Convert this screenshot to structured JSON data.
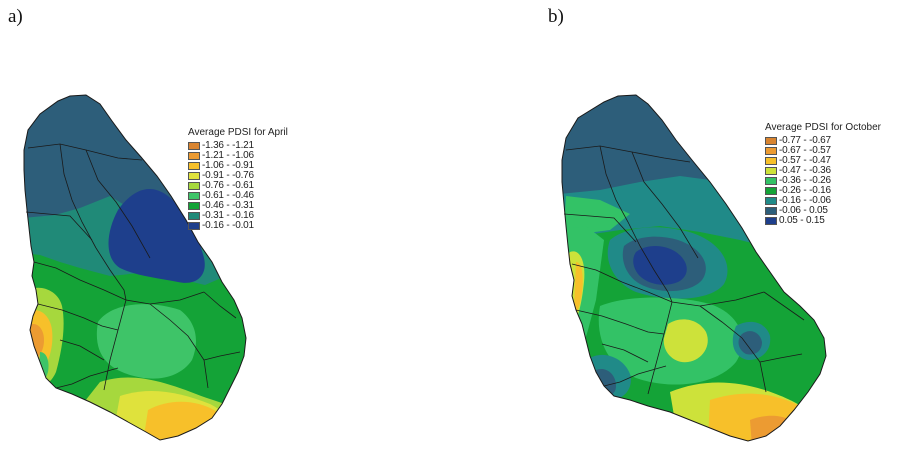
{
  "panels": [
    {
      "label": "a)",
      "legend_title": "Average PDSI for April",
      "classes": [
        {
          "range": "-1.36 - -1.21",
          "color": "#d88430"
        },
        {
          "range": "-1.21 - -1.06",
          "color": "#ec9b32"
        },
        {
          "range": "-1.06 - -0.91",
          "color": "#f7c02a"
        },
        {
          "range": "-0.91 - -0.76",
          "color": "#dfe23c"
        },
        {
          "range": "-0.76 - -0.61",
          "color": "#a6d83d"
        },
        {
          "range": "-0.61 - -0.46",
          "color": "#3ec468"
        },
        {
          "range": "-0.46 - -0.31",
          "color": "#14a337"
        },
        {
          "range": "-0.31 - -0.16",
          "color": "#208a78"
        },
        {
          "range": "-0.16 - -0.01",
          "color": "#1e3f8c"
        }
      ]
    },
    {
      "label": "b)",
      "legend_title": "Average PDSI for October",
      "classes": [
        {
          "range": "-0.77 - -0.67",
          "color": "#d88430"
        },
        {
          "range": "-0.67 - -0.57",
          "color": "#ec9b32"
        },
        {
          "range": "-0.57 - -0.47",
          "color": "#f7c02a"
        },
        {
          "range": "-0.47 - -0.36",
          "color": "#cde23a"
        },
        {
          "range": "-0.36 - -0.26",
          "color": "#33c266"
        },
        {
          "range": "-0.26 - -0.16",
          "color": "#14a337"
        },
        {
          "range": "-0.16 - -0.06",
          "color": "#208a88"
        },
        {
          "range": "-0.06 - 0.05",
          "color": "#2d5e7a"
        },
        {
          "range": "0.05 - 0.15",
          "color": "#1e3f8c"
        }
      ]
    }
  ]
}
